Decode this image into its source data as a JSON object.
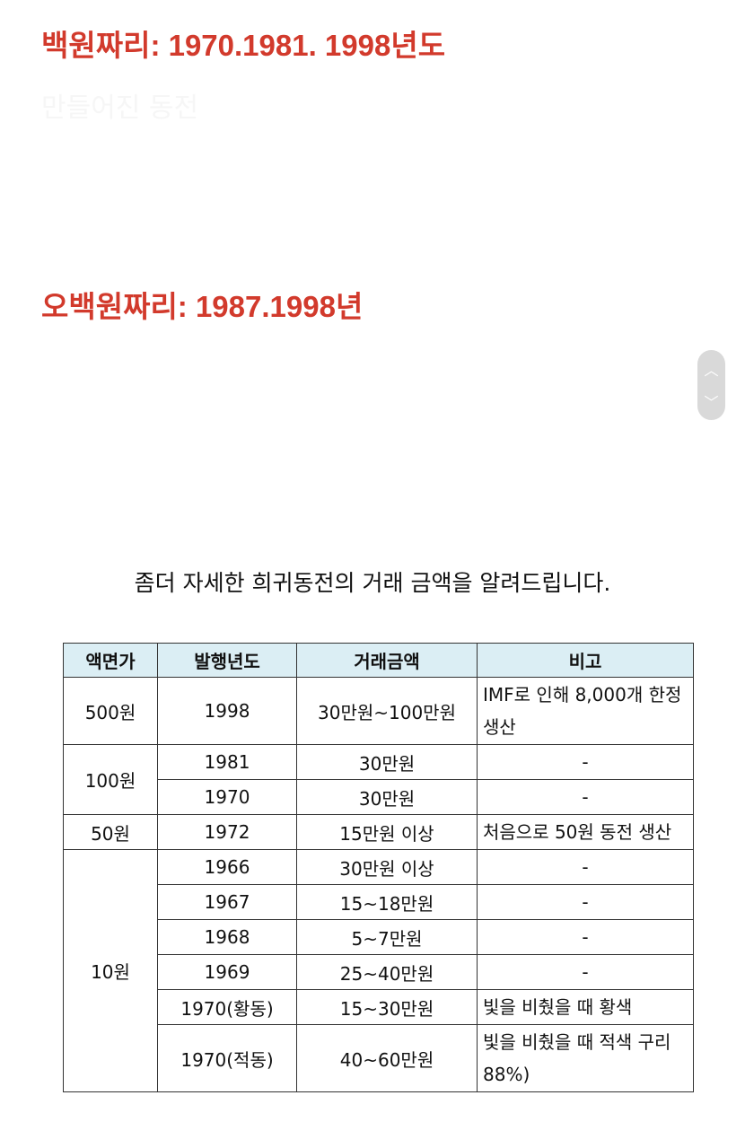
{
  "headings": {
    "hundred": "백원짜리: 1970.1981. 1998년도",
    "faded": "만들어진 동전",
    "five_hundred": "오백원짜리: 1987.1998년"
  },
  "intro": "좀더 자세한 희귀동전의 거래 금액을 알려드립니다.",
  "table": {
    "header": [
      "액면가",
      "발행년도",
      "거래금액",
      "비고"
    ],
    "groups": [
      {
        "face": "500원",
        "rows": [
          [
            "1998",
            "30만원~100만원",
            "IMF로 인해 8,000개 한정생산"
          ]
        ]
      },
      {
        "face": "100원",
        "rows": [
          [
            "1981",
            "30만원",
            "-"
          ],
          [
            "1970",
            "30만원",
            "-"
          ]
        ]
      },
      {
        "face": "50원",
        "rows": [
          [
            "1972",
            "15만원 이상",
            "처음으로 50원 동전 생산"
          ]
        ]
      },
      {
        "face": "10원",
        "rows": [
          [
            "1966",
            "30만원 이상",
            "-"
          ],
          [
            "1967",
            "15~18만원",
            "-"
          ],
          [
            "1968",
            "5~7만원",
            "-"
          ],
          [
            "1969",
            "25~40만원",
            "-"
          ],
          [
            "1970(황동)",
            "15~30만원",
            "빛을 비췄을 때 황색"
          ],
          [
            "1970(적동)",
            "40~60만원",
            "빛을 비췄을 때 적색 구리 88%)"
          ]
        ]
      }
    ]
  }
}
